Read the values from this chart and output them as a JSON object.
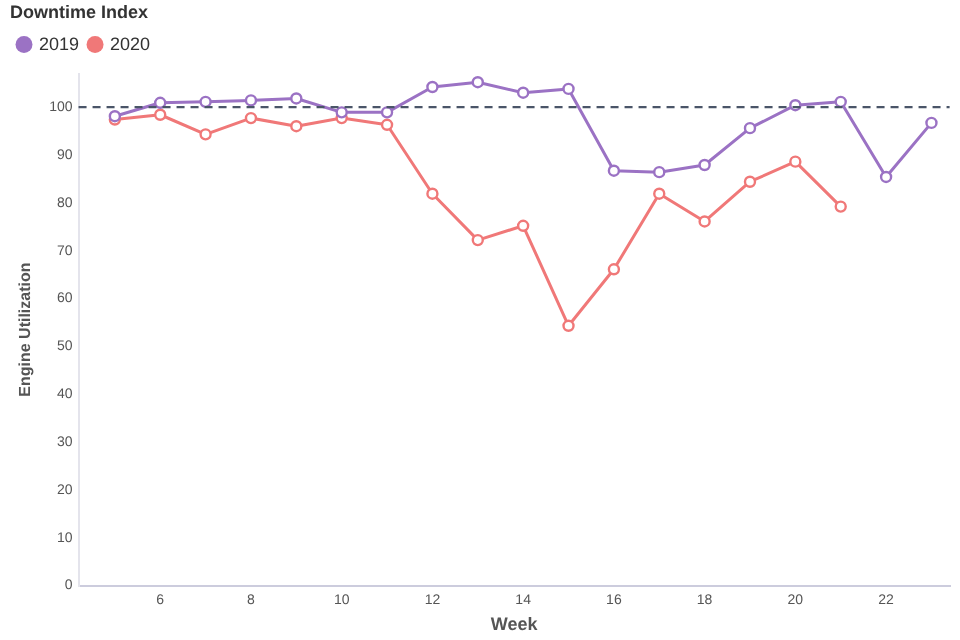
{
  "chart_data": {
    "type": "line",
    "legend_title": "Downtime Index",
    "xlabel": "Week",
    "ylabel": "Engine Utilization",
    "x": [
      5,
      6,
      7,
      8,
      9,
      10,
      11,
      12,
      13,
      14,
      15,
      16,
      17,
      18,
      19,
      20,
      21,
      22,
      23
    ],
    "series": [
      {
        "name": "2019",
        "color": "#9b72c4",
        "values": [
          98.1,
          100.9,
          101.1,
          101.4,
          101.8,
          98.9,
          98.9,
          104.2,
          105.2,
          103,
          103.8,
          86.7,
          86.4,
          87.9,
          95.6,
          100.4,
          101.1,
          85.4,
          96.7
        ]
      },
      {
        "name": "2020",
        "color": "#f07878",
        "values": [
          97.4,
          98.4,
          94.3,
          97.7,
          96,
          97.7,
          96.3,
          81.9,
          72.2,
          75.2,
          54.3,
          66.1,
          81.9,
          76.1,
          84.4,
          88.6,
          79.2,
          null,
          null
        ]
      }
    ],
    "xlim": [
      4.2,
      23.4
    ],
    "xticks": [
      6,
      8,
      10,
      12,
      14,
      16,
      18,
      20,
      22
    ],
    "ylim": [
      0,
      107
    ],
    "yticks": [
      0,
      10,
      20,
      30,
      40,
      50,
      60,
      70,
      80,
      90,
      100
    ],
    "ref_lines": [
      {
        "axis": "y",
        "value": 100,
        "color": "#4a5568",
        "line_style": "dashed"
      }
    ],
    "grid": false,
    "legend": "top left",
    "marker": "circle",
    "line_style": "solid"
  }
}
